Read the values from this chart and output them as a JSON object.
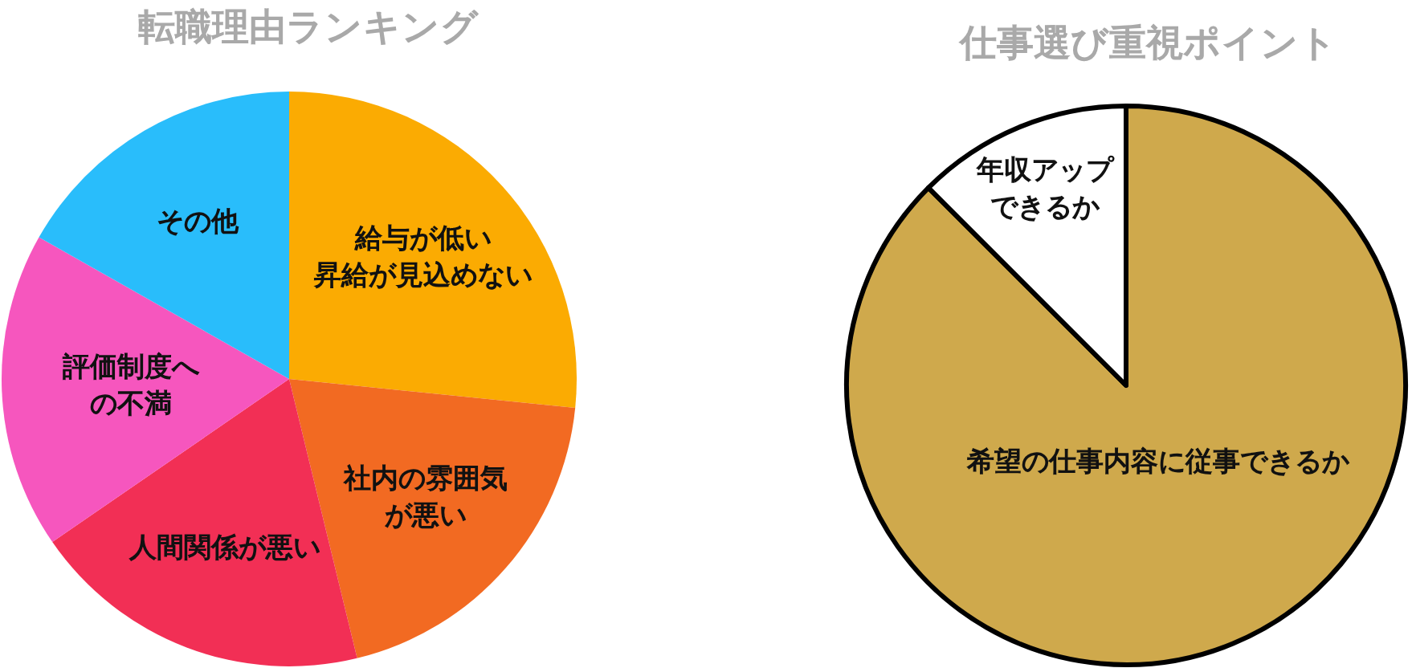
{
  "chart_data": [
    {
      "type": "pie",
      "title": "転職理由ランキング",
      "categories": [
        "給与が低い昇給が見込めない",
        "社内の雰囲気が悪い",
        "人間関係が悪い",
        "評価制度への不満",
        "その他"
      ],
      "values": [
        26.6,
        19.6,
        19.2,
        17.8,
        16.8
      ],
      "colors": [
        "#fbab02",
        "#f26a22",
        "#f22f55",
        "#f656be",
        "#29bdfb"
      ]
    },
    {
      "type": "pie",
      "title": "仕事選び重視ポイント",
      "categories": [
        "希望の仕事内容に従事できるか",
        "年収アップできるか"
      ],
      "values": [
        87.5,
        12.5
      ],
      "colors": [
        "#cfa94c",
        "#ffffff"
      ]
    }
  ]
}
